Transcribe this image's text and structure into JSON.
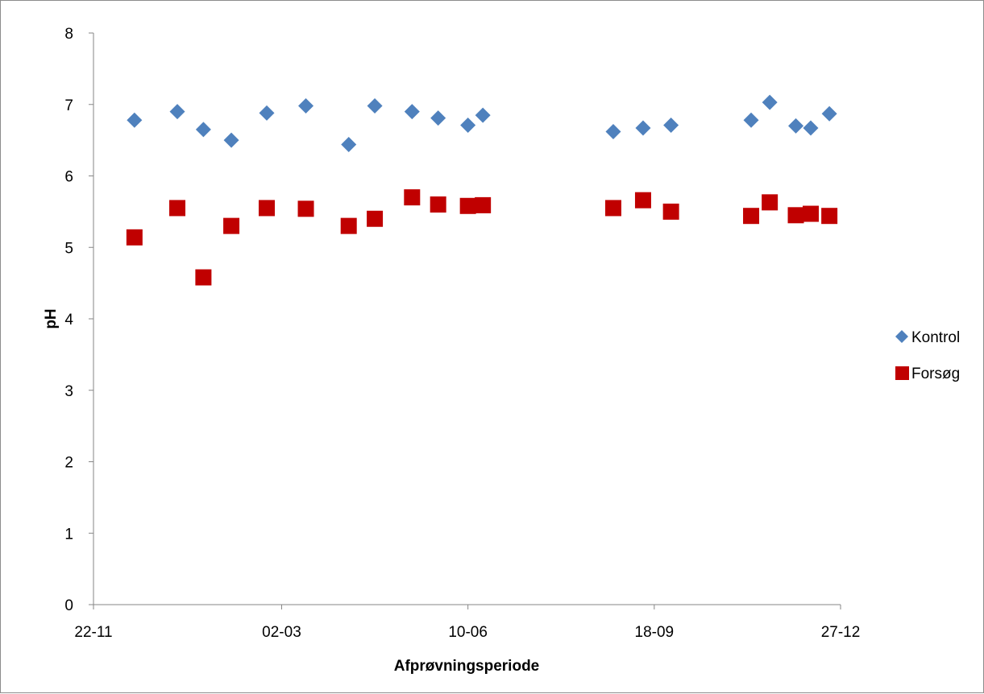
{
  "chart_data": {
    "type": "scatter",
    "title": "",
    "xlabel": "Afprøvningsperiode",
    "ylabel": "pH",
    "x_axis": {
      "type": "date",
      "range": [
        "22-11",
        "27-12"
      ],
      "range_dates": [
        "2011-11-22",
        "2012-12-27"
      ],
      "ticks": [
        {
          "date": "2011-11-22",
          "label": "22-11"
        },
        {
          "date": "2012-03-02",
          "label": "02-03"
        },
        {
          "date": "2012-06-10",
          "label": "10-06"
        },
        {
          "date": "2012-09-18",
          "label": "18-09"
        },
        {
          "date": "2012-12-27",
          "label": "27-12"
        }
      ]
    },
    "ylim": [
      0,
      8
    ],
    "yticks": [
      0,
      1,
      2,
      3,
      4,
      5,
      6,
      7,
      8
    ],
    "grid": false,
    "legend_position": "right",
    "series": [
      {
        "name": "Kontrol",
        "marker": "diamond",
        "color": "#4f81bd",
        "points": [
          {
            "x": "2011-12-14",
            "y": 6.78
          },
          {
            "x": "2012-01-06",
            "y": 6.9
          },
          {
            "x": "2012-01-20",
            "y": 6.65
          },
          {
            "x": "2012-02-04",
            "y": 6.5
          },
          {
            "x": "2012-02-23",
            "y": 6.88
          },
          {
            "x": "2012-03-15",
            "y": 6.98
          },
          {
            "x": "2012-04-07",
            "y": 6.44
          },
          {
            "x": "2012-04-21",
            "y": 6.98
          },
          {
            "x": "2012-05-11",
            "y": 6.9
          },
          {
            "x": "2012-05-25",
            "y": 6.81
          },
          {
            "x": "2012-06-10",
            "y": 6.71
          },
          {
            "x": "2012-06-18",
            "y": 6.85
          },
          {
            "x": "2012-08-27",
            "y": 6.62
          },
          {
            "x": "2012-09-12",
            "y": 6.67
          },
          {
            "x": "2012-09-27",
            "y": 6.71
          },
          {
            "x": "2012-11-09",
            "y": 6.78
          },
          {
            "x": "2012-11-19",
            "y": 7.03
          },
          {
            "x": "2012-12-03",
            "y": 6.7
          },
          {
            "x": "2012-12-11",
            "y": 6.67
          },
          {
            "x": "2012-12-21",
            "y": 6.87
          }
        ]
      },
      {
        "name": "Forsøg",
        "marker": "square",
        "color": "#c00000",
        "points": [
          {
            "x": "2011-12-14",
            "y": 5.14
          },
          {
            "x": "2012-01-06",
            "y": 5.55
          },
          {
            "x": "2012-01-20",
            "y": 4.58
          },
          {
            "x": "2012-02-04",
            "y": 5.3
          },
          {
            "x": "2012-02-23",
            "y": 5.55
          },
          {
            "x": "2012-03-15",
            "y": 5.54
          },
          {
            "x": "2012-04-07",
            "y": 5.3
          },
          {
            "x": "2012-04-21",
            "y": 5.4
          },
          {
            "x": "2012-05-11",
            "y": 5.7
          },
          {
            "x": "2012-05-25",
            "y": 5.6
          },
          {
            "x": "2012-06-10",
            "y": 5.58
          },
          {
            "x": "2012-06-18",
            "y": 5.59
          },
          {
            "x": "2012-08-27",
            "y": 5.55
          },
          {
            "x": "2012-09-12",
            "y": 5.66
          },
          {
            "x": "2012-09-27",
            "y": 5.5
          },
          {
            "x": "2012-11-09",
            "y": 5.44
          },
          {
            "x": "2012-11-19",
            "y": 5.63
          },
          {
            "x": "2012-12-03",
            "y": 5.45
          },
          {
            "x": "2012-12-11",
            "y": 5.47
          },
          {
            "x": "2012-12-21",
            "y": 5.44
          }
        ]
      }
    ]
  }
}
